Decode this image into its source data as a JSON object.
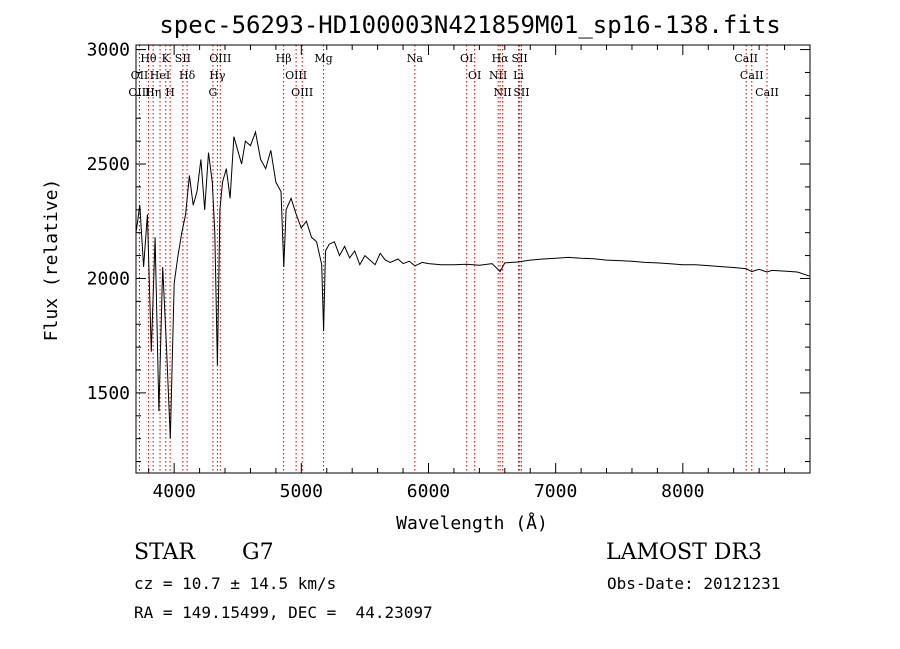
{
  "chart_data": {
    "type": "line",
    "title": "spec-56293-HD100003N421859M01_sp16-138.fits",
    "xlabel": "Wavelength (Å)",
    "ylabel": "Flux (relative)",
    "xlim": [
      3700,
      9000
    ],
    "ylim": [
      1150,
      3020
    ],
    "x_ticks": [
      4000,
      5000,
      6000,
      7000,
      8000
    ],
    "y_ticks": [
      1500,
      2000,
      2500,
      3000
    ],
    "series": [
      {
        "name": "flux",
        "x": [
          3700,
          3730,
          3760,
          3790,
          3820,
          3850,
          3880,
          3910,
          3940,
          3970,
          4000,
          4030,
          4060,
          4090,
          4120,
          4150,
          4180,
          4210,
          4240,
          4270,
          4300,
          4320,
          4340,
          4360,
          4380,
          4410,
          4440,
          4470,
          4500,
          4530,
          4560,
          4600,
          4640,
          4680,
          4720,
          4760,
          4800,
          4840,
          4862,
          4880,
          4920,
          4960,
          5000,
          5040,
          5080,
          5120,
          5160,
          5175,
          5190,
          5220,
          5260,
          5300,
          5340,
          5380,
          5420,
          5460,
          5500,
          5540,
          5580,
          5620,
          5660,
          5700,
          5760,
          5800,
          5850,
          5893,
          5950,
          6000,
          6100,
          6200,
          6300,
          6400,
          6500,
          6563,
          6600,
          6700,
          6800,
          6900,
          7000,
          7100,
          7200,
          7300,
          7400,
          7500,
          7600,
          7700,
          7800,
          7900,
          8000,
          8100,
          8200,
          8300,
          8400,
          8500,
          8542,
          8600,
          8662,
          8700,
          8800,
          8900,
          9000
        ],
        "values": [
          2200,
          2320,
          2050,
          2280,
          1680,
          2180,
          1420,
          2050,
          1700,
          1300,
          1980,
          2100,
          2200,
          2280,
          2450,
          2320,
          2380,
          2520,
          2300,
          2550,
          2420,
          2200,
          1620,
          2300,
          2420,
          2480,
          2350,
          2620,
          2560,
          2500,
          2600,
          2580,
          2640,
          2520,
          2480,
          2560,
          2420,
          2380,
          2050,
          2300,
          2350,
          2280,
          2220,
          2250,
          2180,
          2160,
          2060,
          1770,
          2120,
          2150,
          2160,
          2100,
          2140,
          2090,
          2120,
          2060,
          2100,
          2080,
          2060,
          2110,
          2080,
          2070,
          2085,
          2065,
          2075,
          2055,
          2070,
          2065,
          2060,
          2060,
          2062,
          2058,
          2065,
          2030,
          2068,
          2072,
          2080,
          2085,
          2088,
          2092,
          2088,
          2086,
          2080,
          2078,
          2075,
          2070,
          2068,
          2064,
          2060,
          2060,
          2056,
          2052,
          2048,
          2042,
          2030,
          2040,
          2028,
          2035,
          2032,
          2028,
          2010
        ]
      }
    ],
    "annotation_lines": [
      {
        "label": "Hθ",
        "x": 3798
      },
      {
        "label": "OII",
        "x": 3727
      },
      {
        "label": "OIII",
        "x": 3727
      },
      {
        "label": "K",
        "x": 3934
      },
      {
        "label": "HeI",
        "x": 3889
      },
      {
        "label": "Hη",
        "x": 3835
      },
      {
        "label": "SII",
        "x": 4069
      },
      {
        "label": "H",
        "x": 3968
      },
      {
        "label": "Hδ",
        "x": 4102
      },
      {
        "label": "OIII",
        "x": 4363
      },
      {
        "label": "Hγ",
        "x": 4340
      },
      {
        "label": "G",
        "x": 4305
      },
      {
        "label": "Hβ",
        "x": 4861
      },
      {
        "label": "OIII",
        "x": 4959
      },
      {
        "label": "OIII",
        "x": 5007
      },
      {
        "label": "Mg",
        "x": 5175
      },
      {
        "label": "Na",
        "x": 5893
      },
      {
        "label": "OI",
        "x": 6300
      },
      {
        "label": "OI",
        "x": 6363
      },
      {
        "label": "Hα",
        "x": 6563
      },
      {
        "label": "NII",
        "x": 6548
      },
      {
        "label": "NII",
        "x": 6583
      },
      {
        "label": "SII",
        "x": 6717
      },
      {
        "label": "Li",
        "x": 6708
      },
      {
        "label": "SII",
        "x": 6731
      },
      {
        "label": "CaII",
        "x": 8498
      },
      {
        "label": "CaII",
        "x": 8542
      },
      {
        "label": "CaII",
        "x": 8662
      }
    ]
  },
  "info": {
    "object_type": "STAR",
    "subclass": "G7",
    "survey": "LAMOST DR3",
    "cz": "cz = 10.7 ± 14.5 km/s",
    "obs_date": "Obs-Date: 20121231",
    "coords": "RA = 149.15499, DEC =  44.23097"
  },
  "colors": {
    "line": "#000000",
    "marker": "#cc0000"
  }
}
